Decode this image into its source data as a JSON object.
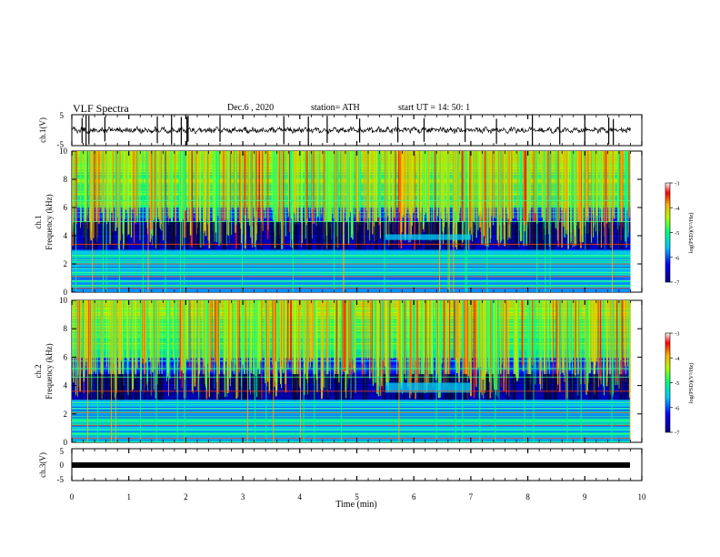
{
  "header": {
    "title": "VLF Spectra",
    "date": "Dec.6 , 2020",
    "station": "station= ATH",
    "start": "start UT = 14: 50: 1"
  },
  "chart_data": [
    {
      "type": "line",
      "panel": "ch1-waveform",
      "ylabel": "ch.1(V)",
      "ylim": [
        -5,
        5
      ],
      "yticks": [
        "5",
        "-5"
      ],
      "xlim": [
        0,
        10
      ],
      "baseline": 0,
      "spikes_min": [
        0.18,
        0.25,
        0.3,
        0.58,
        1.5,
        1.75,
        1.92,
        2.02,
        2.04,
        2.6,
        3.72,
        4.15,
        4.48,
        5.05,
        5.72,
        6.18,
        6.9,
        7.45,
        8.08,
        8.56,
        9.0,
        9.42,
        9.5
      ]
    },
    {
      "type": "heatmap",
      "panel": "ch1-spectrogram",
      "ylabel_line1": "ch.1",
      "ylabel_line2": "Frequency (kHz)",
      "ylim": [
        0,
        10
      ],
      "yticks": [
        "0",
        "2",
        "4",
        "6",
        "8",
        "10"
      ],
      "xlim": [
        0,
        9.8
      ],
      "colorbar": {
        "label": "log(PSD)(V²/Hz)",
        "range": [
          -7,
          -3
        ],
        "ticks": [
          "-3",
          "-4",
          "-5",
          "-6",
          "-7"
        ]
      },
      "background_emission_top_khz": 6.0,
      "dark_band_khz": [
        3.0,
        5.0
      ],
      "hiss_patch": {
        "t_min": [
          5.5,
          7.0
        ],
        "f_khz": [
          3.7,
          4.1
        ]
      },
      "lines_khz": [
        0.3,
        0.5,
        0.8,
        1.1,
        1.4,
        1.7,
        2.0,
        2.3,
        2.6,
        3.4,
        5.0,
        6.5
      ]
    },
    {
      "type": "heatmap",
      "panel": "ch2-spectrogram",
      "ylabel_line1": "ch.2",
      "ylabel_line2": "Frequency (kHz)",
      "ylim": [
        0,
        10
      ],
      "yticks": [
        "0",
        "2",
        "4",
        "6",
        "8",
        "10"
      ],
      "xlim": [
        0,
        9.8
      ],
      "colorbar": {
        "label": "log(PSD)(V²/Hz)",
        "range": [
          -7,
          -3
        ],
        "ticks": [
          "-3",
          "-4",
          "-5",
          "-6",
          "-7"
        ]
      },
      "background_emission_top_khz": 6.0,
      "dark_band_khz": [
        3.0,
        4.8
      ],
      "hiss_patch": {
        "t_min": [
          5.5,
          7.0
        ],
        "f_khz": [
          3.5,
          4.2
        ]
      },
      "lines_khz": [
        0.3,
        0.6,
        0.9,
        1.2,
        1.5,
        1.8,
        2.1,
        2.4,
        2.8,
        3.6,
        4.6,
        5.2
      ]
    },
    {
      "type": "line",
      "panel": "ch3-waveform",
      "ylabel": "ch.3(V)",
      "ylim": [
        -5,
        5
      ],
      "yticks": [
        "5",
        "0",
        "-5"
      ],
      "xlim": [
        0,
        10
      ],
      "baseline": 0,
      "xlabel": "Time (min)",
      "xticks": [
        "0",
        "1",
        "2",
        "3",
        "4",
        "5",
        "6",
        "7",
        "8",
        "9",
        "10"
      ]
    }
  ]
}
